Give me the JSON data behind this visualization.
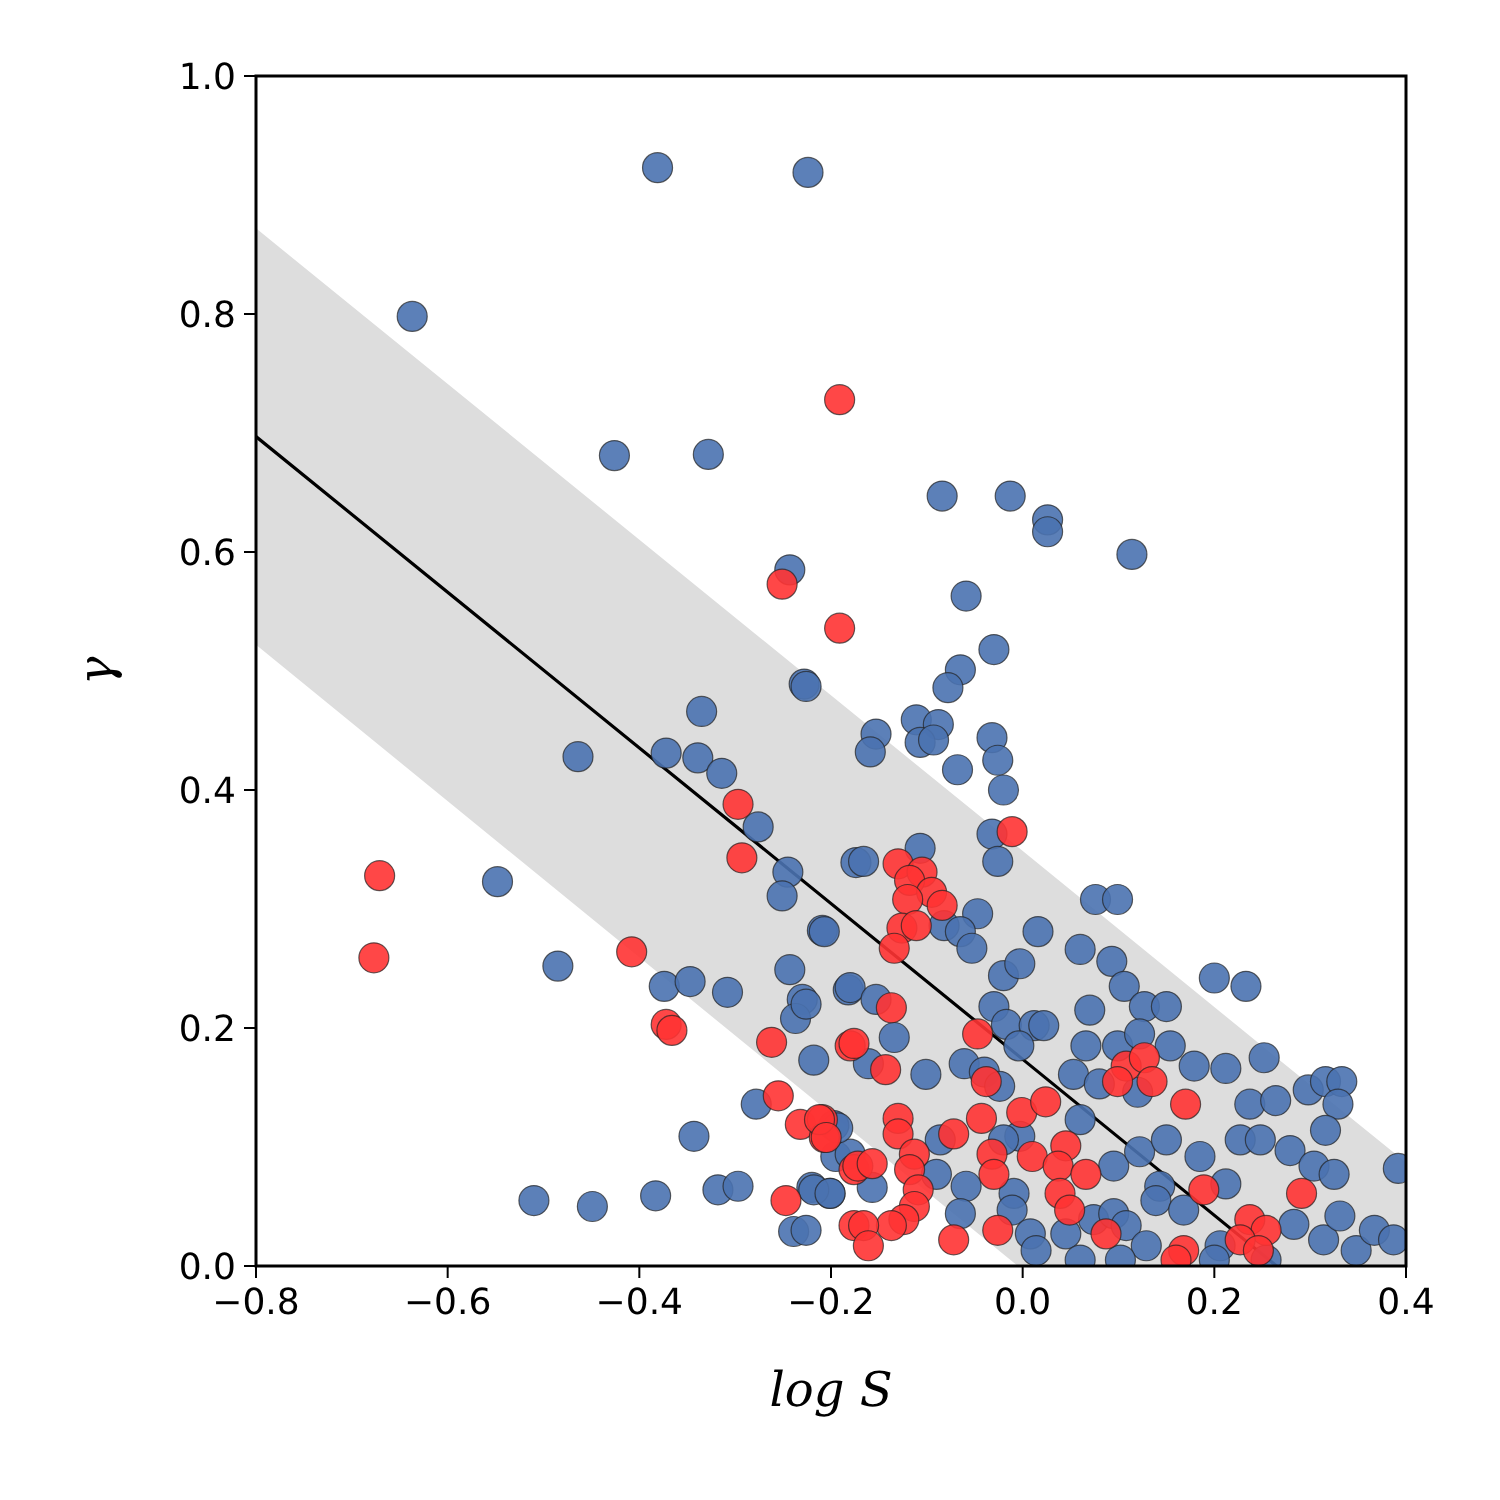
{
  "chart_data": {
    "type": "scatter",
    "xlabel": "log S",
    "ylabel": "γ",
    "xlim": [
      -0.8,
      0.4
    ],
    "ylim": [
      0,
      1
    ],
    "xticks": [
      {
        "value": -0.8,
        "label": "−0.8"
      },
      {
        "value": -0.6,
        "label": "−0.6"
      },
      {
        "value": -0.4,
        "label": "−0.4"
      },
      {
        "value": -0.2,
        "label": "−0.2"
      },
      {
        "value": 0,
        "label": "0.0"
      },
      {
        "value": 0.2,
        "label": "0.2"
      },
      {
        "value": 0.4,
        "label": "0.4"
      }
    ],
    "yticks": [
      {
        "value": 0,
        "label": "0.0"
      },
      {
        "value": 0.2,
        "label": "0.2"
      },
      {
        "value": 0.4,
        "label": "0.4"
      },
      {
        "value": 0.6,
        "label": "0.6"
      },
      {
        "value": 0.8,
        "label": "0.8"
      },
      {
        "value": 1,
        "label": "1.0"
      }
    ],
    "series": [
      {
        "type": "line",
        "marker": "none",
        "color": "#000000",
        "x": [
          -0.8,
          -0.005,
          0.265,
          0.4
        ],
        "values": [
          0.697,
          0.177,
          0,
          null
        ],
        "lower": [
          0.522,
          0,
          0,
          0
        ],
        "upper": [
          0.872,
          0.352,
          0.175,
          0.087
        ]
      },
      {
        "marker": "circle",
        "color": "#4a72b0",
        "x": [
          -0.381,
          -0.224,
          -0.637,
          -0.426,
          -0.328,
          -0.243,
          -0.084,
          -0.013,
          0.026,
          0.026,
          0.114,
          -0.059,
          -0.03,
          -0.065,
          -0.228,
          -0.335,
          -0.464,
          -0.372,
          -0.339,
          -0.314,
          -0.276,
          -0.245,
          -0.251,
          -0.209,
          -0.174,
          -0.548,
          -0.485,
          -0.374,
          -0.347,
          -0.308,
          -0.243,
          -0.23,
          -0.237,
          -0.182,
          -0.218,
          -0.278,
          -0.197,
          -0.195,
          -0.18,
          -0.343,
          -0.51,
          -0.449,
          -0.383,
          -0.318,
          -0.297,
          -0.22,
          -0.201,
          -0.239,
          -0.226,
          -0.078,
          -0.153,
          -0.159,
          -0.111,
          -0.088,
          -0.107,
          -0.093,
          -0.032,
          -0.026,
          -0.068,
          -0.02,
          -0.032,
          -0.026,
          -0.166,
          -0.107,
          -0.047,
          -0.082,
          -0.065,
          -0.053,
          -0.207,
          0.016,
          0.06,
          0.093,
          -0.02,
          -0.003,
          0.076,
          0.099,
          0.106,
          0.2,
          0.233,
          0.07,
          0.127,
          0.15,
          -0.03,
          -0.18,
          -0.153,
          -0.226,
          -0.134,
          -0.161,
          -0.101,
          -0.017,
          0.012,
          0.022,
          -0.004,
          0.066,
          0.099,
          0.122,
          0.154,
          -0.061,
          -0.04,
          -0.024,
          0.053,
          0.08,
          0.179,
          0.212,
          0.252,
          0.12,
          0.237,
          0.264,
          0.298,
          0.316,
          0.333,
          0.329,
          -0.193,
          -0.086,
          0.06,
          -0.003,
          0.095,
          0.122,
          0.15,
          0.185,
          0.227,
          0.248,
          0.279,
          0.304,
          0.325,
          0.316,
          0.392,
          0.143,
          0.212,
          -0.09,
          -0.218,
          -0.201,
          -0.157,
          -0.059,
          -0.009,
          -0.065,
          -0.011,
          0.008,
          0.014,
          0.045,
          0.074,
          0.095,
          0.108,
          0.129,
          0.139,
          0.168,
          0.206,
          0.283,
          0.314,
          0.348,
          0.367,
          0.387,
          0.331,
          0.2,
          0.254,
          0.06,
          0.102,
          -0.226,
          -0.02
        ],
        "values": [
          0.923,
          0.919,
          0.798,
          0.681,
          0.682,
          0.585,
          0.647,
          0.647,
          0.627,
          0.617,
          0.598,
          0.563,
          0.518,
          0.501,
          0.489,
          0.466,
          0.428,
          0.431,
          0.427,
          0.414,
          0.369,
          0.331,
          0.311,
          0.282,
          0.339,
          0.323,
          0.252,
          0.235,
          0.239,
          0.23,
          0.249,
          0.224,
          0.208,
          0.232,
          0.173,
          0.136,
          0.118,
          0.092,
          0.094,
          0.109,
          0.055,
          0.05,
          0.059,
          0.064,
          0.067,
          0.066,
          0.061,
          0.029,
          0.487,
          0.486,
          0.447,
          0.432,
          0.459,
          0.455,
          0.44,
          0.442,
          0.444,
          0.425,
          0.417,
          0.4,
          0.363,
          0.34,
          0.34,
          0.351,
          0.296,
          0.286,
          0.281,
          0.267,
          0.281,
          0.281,
          0.266,
          0.256,
          0.244,
          0.254,
          0.308,
          0.308,
          0.235,
          0.242,
          0.235,
          0.215,
          0.218,
          0.218,
          0.218,
          0.234,
          0.224,
          0.22,
          0.192,
          0.17,
          0.161,
          0.203,
          0.202,
          0.202,
          0.185,
          0.185,
          0.185,
          0.195,
          0.185,
          0.17,
          0.163,
          0.151,
          0.161,
          0.153,
          0.168,
          0.166,
          0.175,
          0.146,
          0.136,
          0.139,
          0.148,
          0.155,
          0.155,
          0.136,
          0.116,
          0.106,
          0.123,
          0.109,
          0.084,
          0.096,
          0.106,
          0.092,
          0.106,
          0.106,
          0.097,
          0.084,
          0.077,
          0.114,
          0.082,
          0.067,
          0.069,
          0.077,
          0.064,
          0.061,
          0.066,
          0.067,
          0.061,
          0.044,
          0.047,
          0.027,
          0.013,
          0.027,
          0.039,
          0.044,
          0.034,
          0.017,
          0.055,
          0.047,
          0.017,
          0.035,
          0.022,
          0.013,
          0.03,
          0.022,
          0.042,
          0.005,
          0.005,
          0.005,
          0.005,
          0.03,
          0.106
        ]
      },
      {
        "marker": "circle",
        "color": "#ff3333",
        "x": [
          -0.251,
          -0.191,
          -0.191,
          -0.297,
          -0.293,
          -0.671,
          -0.677,
          -0.408,
          -0.372,
          -0.366,
          -0.262,
          -0.18,
          -0.255,
          -0.232,
          -0.209,
          -0.207,
          -0.176,
          -0.247,
          -0.176,
          -0.011,
          -0.13,
          -0.105,
          -0.118,
          -0.095,
          -0.12,
          -0.084,
          -0.126,
          -0.111,
          -0.134,
          -0.137,
          -0.176,
          -0.143,
          -0.047,
          -0.038,
          0.108,
          0.127,
          0.135,
          0.099,
          0.17,
          -0.212,
          -0.205,
          -0.13,
          -0.13,
          -0.072,
          -0.043,
          -0.001,
          0.024,
          0.01,
          0.045,
          0.037,
          0.066,
          0.189,
          0.291,
          -0.113,
          -0.118,
          -0.109,
          -0.172,
          -0.157,
          -0.032,
          -0.03,
          0.039,
          0.049,
          -0.113,
          -0.124,
          -0.137,
          -0.166,
          -0.161,
          -0.072,
          -0.026,
          0.087,
          0.168,
          0.16,
          0.237,
          0.254,
          0.227,
          0.246
        ],
        "values": [
          0.573,
          0.728,
          0.536,
          0.388,
          0.343,
          0.328,
          0.259,
          0.264,
          0.203,
          0.198,
          0.188,
          0.185,
          0.143,
          0.119,
          0.123,
          0.108,
          0.081,
          0.055,
          0.034,
          0.365,
          0.338,
          0.331,
          0.324,
          0.314,
          0.308,
          0.303,
          0.284,
          0.286,
          0.267,
          0.217,
          0.187,
          0.165,
          0.195,
          0.155,
          0.168,
          0.175,
          0.155,
          0.155,
          0.136,
          0.123,
          0.108,
          0.124,
          0.111,
          0.111,
          0.124,
          0.129,
          0.138,
          0.092,
          0.101,
          0.084,
          0.077,
          0.064,
          0.061,
          0.094,
          0.081,
          0.064,
          0.084,
          0.086,
          0.094,
          0.077,
          0.061,
          0.047,
          0.05,
          0.039,
          0.034,
          0.034,
          0.017,
          0.022,
          0.03,
          0.027,
          0.013,
          0.005,
          0.039,
          0.03,
          0.022,
          0.013
        ]
      }
    ]
  }
}
